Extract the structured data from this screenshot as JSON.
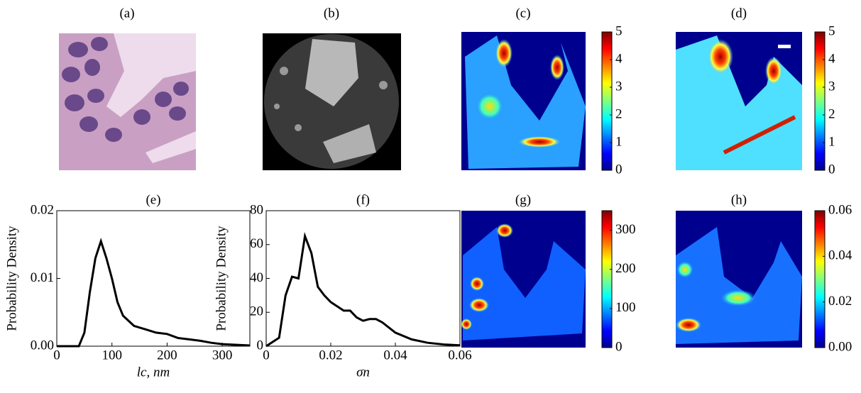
{
  "panels": [
    {
      "label": "(a)"
    },
    {
      "label": "(b)"
    },
    {
      "label": "(c)",
      "colorbar": {
        "lim": [
          0,
          5
        ],
        "ticks": [
          0,
          1,
          2,
          3,
          4,
          5
        ]
      }
    },
    {
      "label": "(d)",
      "colorbar": {
        "lim": [
          0,
          5
        ],
        "ticks": [
          0,
          1,
          2,
          3,
          4,
          5
        ]
      }
    },
    {
      "label": "(g)",
      "colorbar": {
        "lim": [
          0,
          350
        ],
        "ticks": [
          0,
          100,
          200,
          300
        ]
      }
    },
    {
      "label": "(h)",
      "colorbar": {
        "lim": [
          0,
          0.06
        ],
        "ticks": [
          {
            "value": 0,
            "label": "0.00"
          },
          {
            "value": 0.02,
            "label": "0.02"
          },
          {
            "value": 0.04,
            "label": "0.04"
          },
          {
            "value": 0.06,
            "label": "0.06"
          }
        ]
      }
    }
  ],
  "chart_data": [
    {
      "type": "line",
      "title": "(e)",
      "xlabel": "lc, nm",
      "ylabel": "Probability Density",
      "color": "#000000",
      "x": [
        0,
        40,
        50,
        60,
        70,
        80,
        90,
        100,
        110,
        120,
        140,
        160,
        180,
        200,
        220,
        240,
        260,
        280,
        300,
        350
      ],
      "values": [
        0,
        0,
        0.002,
        0.008,
        0.013,
        0.0155,
        0.013,
        0.01,
        0.0065,
        0.0045,
        0.003,
        0.0025,
        0.002,
        0.0018,
        0.0012,
        0.001,
        0.0008,
        0.0005,
        0.0003,
        0.0001
      ],
      "xlim": [
        0,
        350
      ],
      "xticks": [
        0,
        100,
        200,
        300
      ],
      "ylim": [
        0,
        0.02
      ],
      "yticks": [
        {
          "value": 0,
          "label": "0.00"
        },
        {
          "value": 0.01,
          "label": "0.01"
        },
        {
          "value": 0.02,
          "label": "0.02"
        }
      ]
    },
    {
      "type": "line",
      "title": "(f)",
      "xlabel": "σn",
      "ylabel": "Probability Density",
      "color": "#000000",
      "x": [
        0,
        0.004,
        0.006,
        0.008,
        0.01,
        0.012,
        0.014,
        0.016,
        0.018,
        0.02,
        0.024,
        0.026,
        0.028,
        0.03,
        0.032,
        0.034,
        0.036,
        0.04,
        0.045,
        0.05,
        0.055,
        0.06
      ],
      "values": [
        0,
        5,
        30,
        41,
        40,
        65,
        55,
        35,
        30,
        26,
        21,
        21,
        17,
        15,
        16,
        16,
        14,
        8,
        4,
        2,
        1,
        0.5
      ],
      "xlim": [
        0,
        0.06
      ],
      "xticks": [
        0,
        0.02,
        0.04,
        0.06
      ],
      "ylim": [
        0,
        80
      ],
      "yticks": [
        0,
        20,
        40,
        60,
        80
      ]
    }
  ]
}
